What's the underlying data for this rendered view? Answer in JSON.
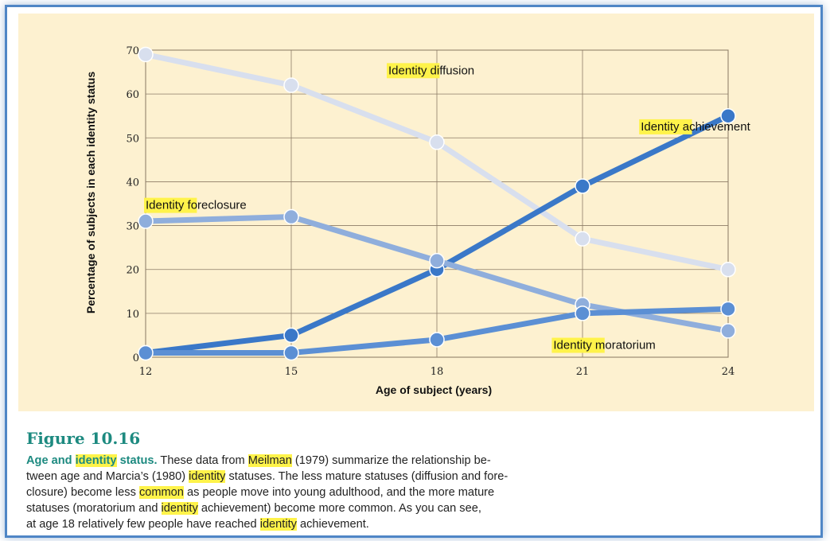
{
  "colors": {
    "panel_bg": "#fdf1d0",
    "frame_border": "#4f86c6",
    "highlight": "#fff34a",
    "caption_title": "#1d8a80"
  },
  "chart_data": {
    "type": "line",
    "title": "",
    "xlabel": "Age of subject (years)",
    "ylabel": "Percentage of subjects in each identity status",
    "x": [
      12,
      15,
      18,
      21,
      24
    ],
    "xticks": [
      "12",
      "15",
      "18",
      "21",
      "24"
    ],
    "yticks": [
      "0",
      "10",
      "20",
      "30",
      "40",
      "50",
      "60",
      "70"
    ],
    "ylim": [
      0,
      70
    ],
    "grid": true,
    "legend": "none (series labeled directly on lines)",
    "series": [
      {
        "name": "Identity diffusion",
        "highlight": "Identity",
        "rest": " diffusion",
        "color": "#d8dfee",
        "values": [
          69,
          62,
          49,
          27,
          20
        ]
      },
      {
        "name": "Identity achievement",
        "highlight": "Identity",
        "rest": " achievement",
        "color": "#3a78c8",
        "values": [
          1,
          5,
          20,
          39,
          55
        ]
      },
      {
        "name": "Identity foreclosure",
        "highlight": "Identity",
        "rest": " foreclosure",
        "color": "#8faedc",
        "values": [
          31,
          32,
          22,
          12,
          6
        ]
      },
      {
        "name": "Identity moratorium",
        "highlight": "Identity",
        "rest": " moratorium",
        "color": "#5b8fd4",
        "values": [
          1,
          1,
          4,
          10,
          11
        ]
      }
    ]
  },
  "caption": {
    "figure_number": "Figure 10.16",
    "title_pre": "Age and ",
    "title_mark": "identity",
    "title_post": " status.",
    "t1": "  These data from ",
    "m1": "Meilman",
    "t2": " (1979) summarize the relationship be-",
    "t3": "tween age and Marcia’s (1980) ",
    "m2": "identity",
    "t4": " statuses. The less mature statuses (diffusion and fore-",
    "t5": "closure) become less ",
    "m3": "common",
    "t6": " as people move into young adulthood, and the more mature",
    "t7": "statuses (moratorium and ",
    "m4": "identity",
    "t8": " achievement) become more common. As you can see,",
    "t9": "at age 18 relatively few people have reached ",
    "m5": "identity",
    "t10": " achievement."
  }
}
